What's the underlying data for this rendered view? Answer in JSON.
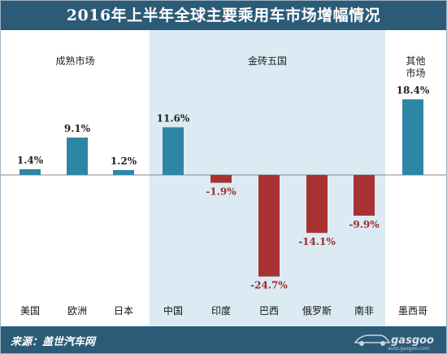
{
  "title": "2016年上半年全球主要乘用车市场增幅情况",
  "source": "来源：盖世汽车网",
  "logo": {
    "icon": "car-logo-icon",
    "text": "gasgoo",
    "url_text": "auto.gasgoo.com"
  },
  "colors": {
    "header": "#2c5b77",
    "positive": "#2e86a5",
    "negative": "#a83232",
    "panel_highlight": "#dbeaf3",
    "panel_plain": "#ffffff"
  },
  "chart_data": {
    "type": "bar",
    "title": "2016年上半年全球主要乘用车市场增幅情况",
    "xlabel": "",
    "ylabel": "",
    "unit": "%",
    "grid": false,
    "ylim": [
      -26,
      20
    ],
    "groups": [
      {
        "label": "成熟市场",
        "categories": [
          "美国",
          "欧洲",
          "日本"
        ]
      },
      {
        "label": "金砖五国",
        "categories": [
          "中国",
          "印度",
          "巴西",
          "俄罗斯",
          "南非"
        ]
      },
      {
        "label": "其他\n市场",
        "categories": [
          "墨西哥"
        ]
      }
    ],
    "categories": [
      "美国",
      "欧洲",
      "日本",
      "中国",
      "印度",
      "巴西",
      "俄罗斯",
      "南非",
      "墨西哥"
    ],
    "values": [
      1.4,
      9.1,
      1.2,
      11.6,
      -1.9,
      -24.7,
      -14.1,
      -9.9,
      18.4
    ],
    "data_labels": [
      "1.4%",
      "9.1%",
      "1.2%",
      "11.6%",
      "-1.9%",
      "-24.7%",
      "-14.1%",
      "-9.9%",
      "18.4%"
    ]
  }
}
